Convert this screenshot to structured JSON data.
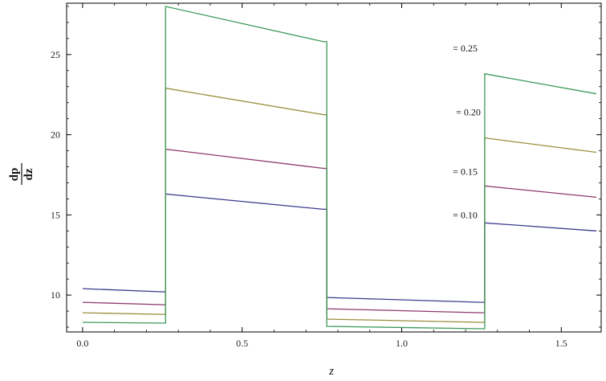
{
  "chart_data": {
    "type": "line",
    "title": "",
    "xlabel": "z",
    "ylabel_num": "dp",
    "ylabel_den": "dz",
    "xlim": [
      -0.05,
      1.625
    ],
    "ylim": [
      7.7,
      28.2
    ],
    "xticks": [
      0.0,
      0.5,
      1.0,
      1.5
    ],
    "xtick_labels": [
      "0.0",
      "0.5",
      "1.0",
      "1.5"
    ],
    "yticks": [
      10,
      15,
      20,
      25
    ],
    "ytick_labels": [
      "10",
      "15",
      "20",
      "25"
    ],
    "grid": false,
    "frame_color": "#000000",
    "series": [
      {
        "color": "#3b3b8f",
        "annotation": "= 0.10",
        "ann_x": 1.16,
        "ann_y": 14.8,
        "segments": [
          [
            [
              0.0,
              10.4
            ],
            [
              0.255,
              10.2
            ]
          ],
          [
            [
              0.26,
              16.3
            ],
            [
              0.755,
              15.35
            ]
          ],
          [
            [
              0.765,
              9.85
            ],
            [
              1.25,
              9.55
            ]
          ],
          [
            [
              1.26,
              14.5
            ],
            [
              1.61,
              14.0
            ]
          ]
        ]
      },
      {
        "color": "#8e3a6c",
        "annotation": "= 0.15",
        "ann_x": 1.16,
        "ann_y": 17.5,
        "segments": [
          [
            [
              0.0,
              9.55
            ],
            [
              0.255,
              9.4
            ]
          ],
          [
            [
              0.26,
              19.1
            ],
            [
              0.755,
              17.9
            ]
          ],
          [
            [
              0.765,
              9.15
            ],
            [
              1.25,
              8.9
            ]
          ],
          [
            [
              1.26,
              16.8
            ],
            [
              1.61,
              16.1
            ]
          ]
        ]
      },
      {
        "color": "#9a8f3c",
        "annotation": "= 0.20",
        "ann_x": 1.17,
        "ann_y": 21.2,
        "segments": [
          [
            [
              0.0,
              8.9
            ],
            [
              0.255,
              8.8
            ]
          ],
          [
            [
              0.26,
              22.9
            ],
            [
              0.755,
              21.25
            ]
          ],
          [
            [
              0.765,
              8.5
            ],
            [
              1.25,
              8.3
            ]
          ],
          [
            [
              1.26,
              19.8
            ],
            [
              1.61,
              18.9
            ]
          ]
        ]
      },
      {
        "color": "#3c9a5a",
        "annotation": "= 0.25",
        "ann_x": 1.16,
        "ann_y": 25.2,
        "segments": [
          [
            [
              0.0,
              8.3
            ],
            [
              0.255,
              8.25
            ]
          ],
          [
            [
              0.26,
              28.0
            ],
            [
              0.755,
              25.8
            ]
          ],
          [
            [
              0.765,
              8.05
            ],
            [
              1.25,
              7.9
            ]
          ],
          [
            [
              1.26,
              23.8
            ],
            [
              1.61,
              22.55
            ]
          ]
        ]
      }
    ]
  }
}
